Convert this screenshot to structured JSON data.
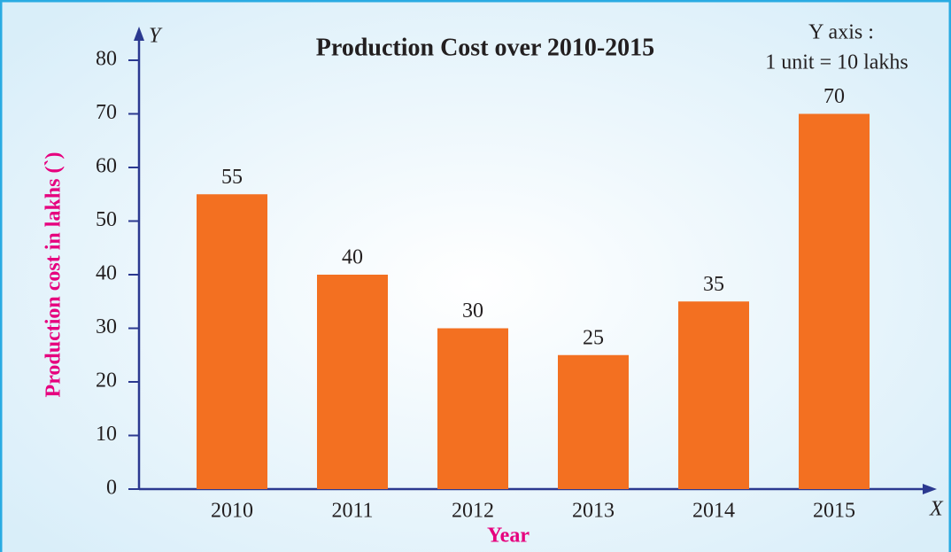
{
  "chart_data": {
    "type": "bar",
    "title": "Production Cost over 2010-2015",
    "annotation": [
      "Y axis :",
      "1 unit = 10 lakhs"
    ],
    "x_label": "Year",
    "y_label": "Production cost in lakhs (`)",
    "x_axis_symbol": "X",
    "y_axis_symbol": "Y",
    "categories": [
      "2010",
      "2011",
      "2012",
      "2013",
      "2014",
      "2015"
    ],
    "values": [
      55,
      40,
      30,
      25,
      35,
      70
    ],
    "color": "#f37021",
    "ylim": [
      0,
      80
    ],
    "yticks": [
      0,
      10,
      20,
      30,
      40,
      50,
      60,
      70,
      80
    ],
    "grid": false
  }
}
